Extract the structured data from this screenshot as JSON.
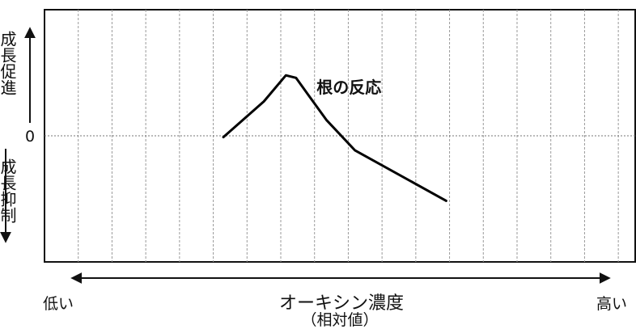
{
  "chart_data": {
    "type": "line",
    "xlabel_main": "オーキシン濃度",
    "xlabel_sub": "（相対値）",
    "x_low_label": "低い",
    "x_high_label": "高い",
    "y_zero_label": "0",
    "y_up_label": "成長促進",
    "y_down_label": "成長抑制",
    "series": [
      {
        "name": "根の反応",
        "color": "#000000",
        "points": [
          {
            "x": 5.3,
            "y": 0.0
          },
          {
            "x": 6.5,
            "y": 0.56
          },
          {
            "x": 7.15,
            "y": 0.97
          },
          {
            "x": 7.45,
            "y": 0.93
          },
          {
            "x": 8.35,
            "y": 0.27
          },
          {
            "x": 9.2,
            "y": -0.21
          },
          {
            "x": 11.9,
            "y": -1.0
          }
        ]
      }
    ],
    "xlim": [
      0,
      17.5
    ],
    "ylim": [
      -1.96,
      2.0
    ],
    "grid_vertical": true,
    "arrows": true
  }
}
